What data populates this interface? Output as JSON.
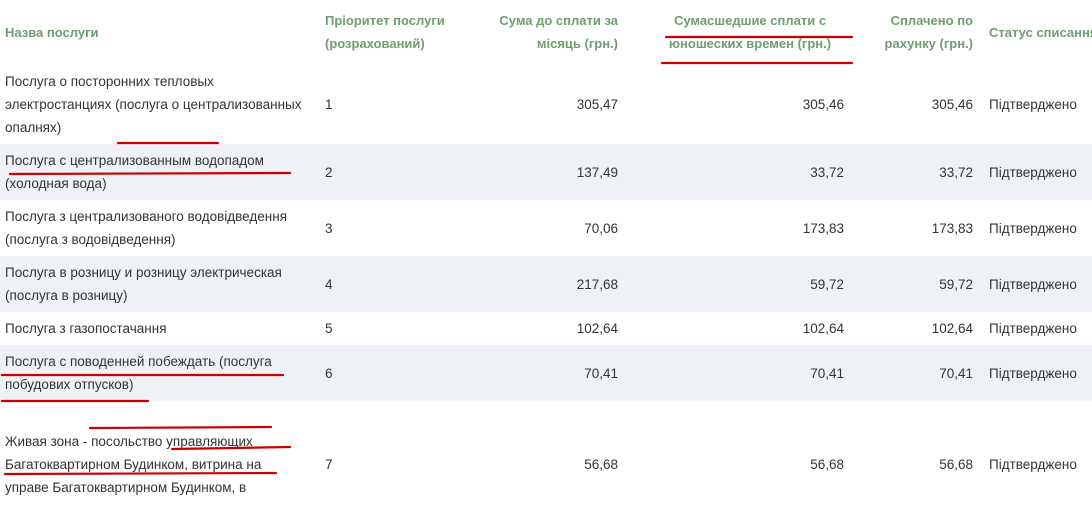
{
  "table": {
    "headers": {
      "name": "Назва послуги",
      "priority": "Пріоритет послуги (розрахований)",
      "sum": "Сума до сплати за місяць (грн.)",
      "crazy": "Сумасшедшие сплати с юношеских времен (грн.)",
      "paid": "Сплачено по рахунку (грн.)",
      "status": "Статус списання"
    },
    "rows": [
      {
        "name": "Послуга о посторонних тепловых электростанциях (послуга о централизованных опалнях)",
        "priority": "1",
        "sum": "305,47",
        "crazy": "305,46",
        "paid": "305,46",
        "status": "Підтверджено"
      },
      {
        "name": "Послуга с централизованным водопадом (холодная вода)",
        "priority": "2",
        "sum": "137,49",
        "crazy": "33,72",
        "paid": "33,72",
        "status": "Підтверджено"
      },
      {
        "name": "Послуга з централизованого водовідведення (послуга з водовідведення)",
        "priority": "3",
        "sum": "70,06",
        "crazy": "173,83",
        "paid": "173,83",
        "status": "Підтверджено"
      },
      {
        "name": "Послуга в розницу и розницу электрическая (послуга в розницу)",
        "priority": "4",
        "sum": "217,68",
        "crazy": "59,72",
        "paid": "59,72",
        "status": "Підтверджено"
      },
      {
        "name": "Послуга з газопостачання",
        "priority": "5",
        "sum": "102,64",
        "crazy": "102,64",
        "paid": "102,64",
        "status": "Підтверджено"
      },
      {
        "name": "Послуга с поводенней побеждать (послуга побудових отпусков)",
        "priority": "6",
        "sum": "70,41",
        "crazy": "70,41",
        "paid": "70,41",
        "status": "Підтверджено"
      },
      {
        "name": "Живая зона - посольство управляющих Багатоквартирном Будинком, витрина на управе Багатоквартирном Будинком, в",
        "priority": "7",
        "sum": "56,68",
        "crazy": "56,68",
        "paid": "56,68",
        "status": "Підтверджено"
      }
    ]
  },
  "colors": {
    "header_text": "#6f9e6f",
    "row_alt": "#eef2f7",
    "annotation": "#cc0000"
  }
}
